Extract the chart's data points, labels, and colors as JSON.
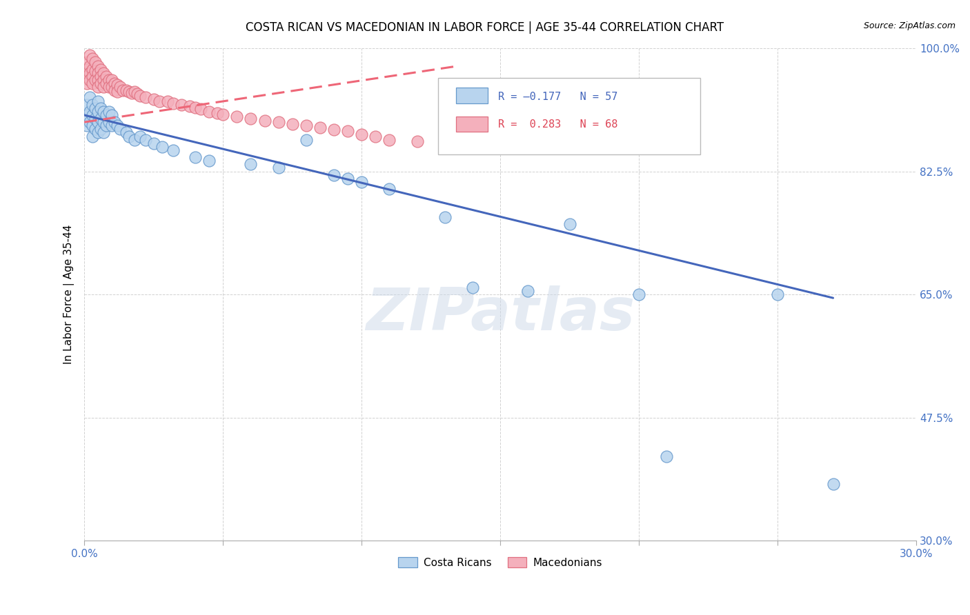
{
  "title": "COSTA RICAN VS MACEDONIAN IN LABOR FORCE | AGE 35-44 CORRELATION CHART",
  "source": "Source: ZipAtlas.com",
  "ylabel": "In Labor Force | Age 35-44",
  "xlim": [
    0.0,
    0.3
  ],
  "ylim": [
    0.3,
    1.0
  ],
  "xticks": [
    0.0,
    0.05,
    0.1,
    0.15,
    0.2,
    0.25,
    0.3
  ],
  "xticklabels": [
    "0.0%",
    "",
    "",
    "",
    "",
    "",
    "30.0%"
  ],
  "ytick_positions": [
    1.0,
    0.825,
    0.65,
    0.475,
    0.3
  ],
  "ytick_labels": [
    "100.0%",
    "82.5%",
    "65.0%",
    "47.5%",
    "30.0%"
  ],
  "watermark": "ZIPatlas",
  "blue_fill": "#b8d4ee",
  "blue_edge": "#6699cc",
  "pink_fill": "#f4b0bc",
  "pink_edge": "#e07080",
  "blue_line_color": "#4466bb",
  "pink_line_color": "#ee6677",
  "title_fontsize": 12,
  "axis_label_fontsize": 11,
  "tick_fontsize": 11,
  "cr_R": -0.177,
  "cr_N": 57,
  "mac_R": 0.283,
  "mac_N": 68,
  "costa_ricans_x": [
    0.001,
    0.001,
    0.001,
    0.002,
    0.002,
    0.002,
    0.003,
    0.003,
    0.003,
    0.003,
    0.004,
    0.004,
    0.004,
    0.005,
    0.005,
    0.005,
    0.005,
    0.006,
    0.006,
    0.006,
    0.007,
    0.007,
    0.007,
    0.008,
    0.008,
    0.009,
    0.009,
    0.01,
    0.01,
    0.011,
    0.012,
    0.013,
    0.015,
    0.016,
    0.018,
    0.02,
    0.022,
    0.025,
    0.028,
    0.032,
    0.04,
    0.045,
    0.06,
    0.07,
    0.08,
    0.09,
    0.095,
    0.1,
    0.11,
    0.13,
    0.14,
    0.16,
    0.175,
    0.2,
    0.21,
    0.25,
    0.27
  ],
  "costa_ricans_y": [
    0.92,
    0.905,
    0.89,
    0.93,
    0.91,
    0.895,
    0.92,
    0.905,
    0.89,
    0.875,
    0.915,
    0.9,
    0.885,
    0.925,
    0.91,
    0.895,
    0.88,
    0.915,
    0.9,
    0.885,
    0.91,
    0.895,
    0.88,
    0.905,
    0.89,
    0.91,
    0.895,
    0.905,
    0.89,
    0.895,
    0.89,
    0.885,
    0.88,
    0.875,
    0.87,
    0.875,
    0.87,
    0.865,
    0.86,
    0.855,
    0.845,
    0.84,
    0.835,
    0.83,
    0.87,
    0.82,
    0.815,
    0.81,
    0.8,
    0.76,
    0.66,
    0.655,
    0.75,
    0.65,
    0.42,
    0.65,
    0.38
  ],
  "macedonians_x": [
    0.001,
    0.001,
    0.001,
    0.001,
    0.002,
    0.002,
    0.002,
    0.002,
    0.003,
    0.003,
    0.003,
    0.003,
    0.004,
    0.004,
    0.004,
    0.005,
    0.005,
    0.005,
    0.005,
    0.006,
    0.006,
    0.006,
    0.007,
    0.007,
    0.007,
    0.008,
    0.008,
    0.009,
    0.009,
    0.01,
    0.01,
    0.011,
    0.011,
    0.012,
    0.012,
    0.013,
    0.014,
    0.015,
    0.016,
    0.017,
    0.018,
    0.019,
    0.02,
    0.022,
    0.025,
    0.027,
    0.03,
    0.032,
    0.035,
    0.038,
    0.04,
    0.042,
    0.045,
    0.048,
    0.05,
    0.055,
    0.06,
    0.065,
    0.07,
    0.075,
    0.08,
    0.085,
    0.09,
    0.095,
    0.1,
    0.105,
    0.11,
    0.12
  ],
  "macedonians_y": [
    0.98,
    0.97,
    0.96,
    0.95,
    0.99,
    0.975,
    0.965,
    0.955,
    0.985,
    0.97,
    0.96,
    0.95,
    0.98,
    0.968,
    0.955,
    0.975,
    0.965,
    0.955,
    0.945,
    0.97,
    0.96,
    0.95,
    0.965,
    0.955,
    0.945,
    0.96,
    0.95,
    0.955,
    0.945,
    0.955,
    0.945,
    0.95,
    0.94,
    0.948,
    0.938,
    0.945,
    0.94,
    0.94,
    0.938,
    0.936,
    0.938,
    0.935,
    0.932,
    0.93,
    0.928,
    0.925,
    0.925,
    0.922,
    0.92,
    0.918,
    0.916,
    0.914,
    0.91,
    0.908,
    0.906,
    0.903,
    0.9,
    0.897,
    0.895,
    0.892,
    0.89,
    0.887,
    0.884,
    0.882,
    0.878,
    0.875,
    0.87,
    0.868
  ]
}
